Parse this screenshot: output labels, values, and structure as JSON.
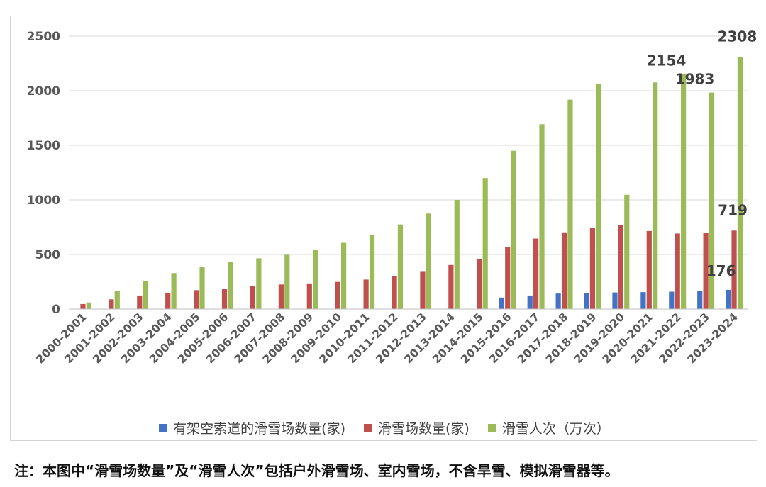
{
  "chart_data": {
    "type": "bar",
    "title": "",
    "xlabel": "",
    "ylabel": "",
    "ylim": [
      0,
      2500
    ],
    "yticks": [
      0,
      500,
      1000,
      1500,
      2000,
      2500
    ],
    "grid": true,
    "legend_position": "bottom",
    "categories": [
      "2000-2001",
      "2001-2002",
      "2002-2003",
      "2003-2004",
      "2004-2005",
      "2005-2006",
      "2006-2007",
      "2007-2008",
      "2008-2009",
      "2009-2010",
      "2010-2011",
      "2011-2012",
      "2012-2013",
      "2013-2014",
      "2014-2015",
      "2015-2016",
      "2016-2017",
      "2017-2018",
      "2018-2019",
      "2019-2020",
      "2020-2021",
      "2021-2022",
      "2022-2023",
      "2023-2024"
    ],
    "series": [
      {
        "name": "有架空索道的滑雪场数量(家)",
        "color": "#4472c4",
        "values": [
          0,
          0,
          0,
          0,
          0,
          0,
          0,
          0,
          0,
          0,
          0,
          0,
          0,
          0,
          0,
          105,
          124,
          142,
          148,
          152,
          155,
          159,
          164,
          176
        ]
      },
      {
        "name": "滑雪场数量(家)",
        "color": "#c0504d",
        "values": [
          46,
          89,
          124,
          150,
          173,
          187,
          210,
          225,
          235,
          249,
          270,
          300,
          348,
          404,
          460,
          568,
          646,
          703,
          742,
          770,
          715,
          692,
          697,
          719
        ]
      },
      {
        "name": "滑雪人次（万次）",
        "color": "#9bbb59",
        "values": [
          60,
          165,
          260,
          330,
          390,
          433,
          465,
          497,
          540,
          607,
          680,
          775,
          875,
          1000,
          1200,
          1450,
          1693,
          1918,
          2061,
          1047,
          2076,
          2154,
          1983,
          2308
        ]
      }
    ],
    "data_labels": [
      {
        "series": 2,
        "index": 21,
        "text": "2154"
      },
      {
        "series": 2,
        "index": 22,
        "text": "1983"
      },
      {
        "series": 2,
        "index": 23,
        "text": "2308"
      },
      {
        "series": 1,
        "index": 23,
        "text": "719"
      },
      {
        "series": 0,
        "index": 23,
        "text": "176"
      }
    ]
  },
  "footnote": "注：本图中“滑雪场数量”及“滑雪人次”包括户外滑雪场、室内雪场，不含旱雪、模拟滑雪器等。"
}
